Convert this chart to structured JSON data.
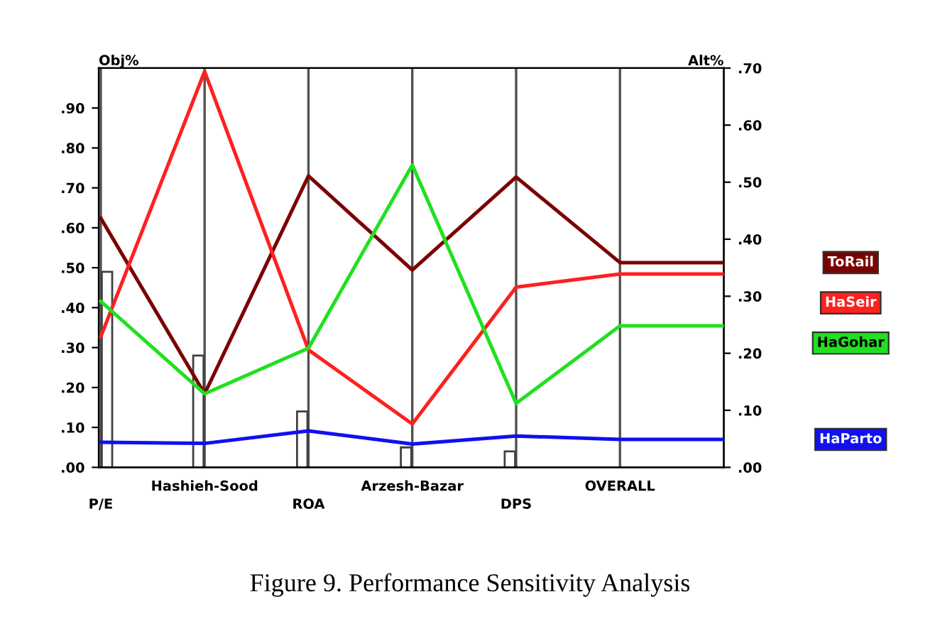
{
  "chart_data": {
    "type": "line",
    "categories": [
      "P/E",
      "Hashieh-Sood",
      "ROA",
      "Arzesh-Bazar",
      "DPS",
      "OVERALL",
      null
    ],
    "ylabel": "Obj%",
    "y2label": "Alt%",
    "ylim": [
      0,
      1.0
    ],
    "yticks": [
      {
        "value": 0,
        "label": ".00"
      },
      {
        "value": 0.1,
        "label": ".10"
      },
      {
        "value": 0.2,
        "label": ".20"
      },
      {
        "value": 0.3,
        "label": ".30"
      },
      {
        "value": 0.4,
        "label": ".40"
      },
      {
        "value": 0.5,
        "label": ".50"
      },
      {
        "value": 0.6,
        "label": ".60"
      },
      {
        "value": 0.7,
        "label": ".70"
      },
      {
        "value": 0.8,
        "label": ".80"
      },
      {
        "value": 0.9,
        "label": ".90"
      }
    ],
    "y2lim": [
      0,
      0.7
    ],
    "y2ticks": [
      {
        "value": 0,
        "label": ".00"
      },
      {
        "value": 0.1,
        "label": ".10"
      },
      {
        "value": 0.2,
        "label": ".20"
      },
      {
        "value": 0.3,
        "label": ".30"
      },
      {
        "value": 0.4,
        "label": ".40"
      },
      {
        "value": 0.5,
        "label": ".50"
      },
      {
        "value": 0.6,
        "label": ".60"
      },
      {
        "value": 0.7,
        "label": ".70"
      }
    ],
    "grid": "x",
    "legend": "right",
    "marker": "none",
    "line_style": "solid",
    "series": [
      {
        "type": "bar",
        "color": "#404040",
        "values": [
          0.49,
          0.28,
          0.14,
          0.05,
          0.04,
          null,
          null
        ]
      },
      {
        "name": "ToRail",
        "color": "#7b0000",
        "axis": "y2",
        "values": [
          0.437,
          0.129,
          0.511,
          0.346,
          0.509,
          0.359,
          0.359
        ]
      },
      {
        "name": "HaSeir",
        "color": "#ff2020",
        "axis": "y2",
        "values": [
          0.229,
          0.694,
          0.206,
          0.076,
          0.316,
          0.339,
          0.339
        ]
      },
      {
        "name": "HaGohar",
        "color": "#20e020",
        "axis": "y2",
        "values": [
          0.291,
          0.129,
          0.209,
          0.53,
          0.112,
          0.248,
          0.248
        ]
      },
      {
        "name": "HaParto",
        "color": "#1010f0",
        "axis": "y2",
        "values": [
          0.044,
          0.042,
          0.064,
          0.041,
          0.055,
          0.049,
          0.049
        ]
      }
    ],
    "annotations": [
      "Figure 9. Performance Sensitivity Analysis"
    ]
  }
}
